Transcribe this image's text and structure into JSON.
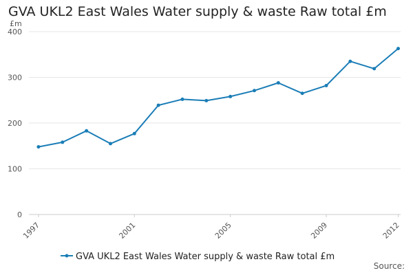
{
  "chart_data": {
    "type": "line",
    "title": "GVA UKL2 East Wales Water supply & waste Raw total £m",
    "ylabel": "£m",
    "xlabel": "",
    "x": [
      1997,
      1998,
      1999,
      2000,
      2001,
      2002,
      2003,
      2004,
      2005,
      2006,
      2007,
      2008,
      2009,
      2010,
      2011,
      2012
    ],
    "x_tick_labels": [
      "1997",
      "2001",
      "2005",
      "2009",
      "2012"
    ],
    "y_ticks": [
      0,
      100,
      200,
      300,
      400
    ],
    "ylim": [
      0,
      400
    ],
    "series": [
      {
        "name": "GVA UKL2 East Wales Water supply & waste Raw total £m",
        "color": "#1a7db6",
        "values": [
          148,
          158,
          183,
          155,
          177,
          239,
          252,
          249,
          258,
          271,
          288,
          265,
          282,
          335,
          319,
          363
        ]
      }
    ],
    "grid": true,
    "legend": "bottom-center",
    "source_label": "Source:"
  }
}
